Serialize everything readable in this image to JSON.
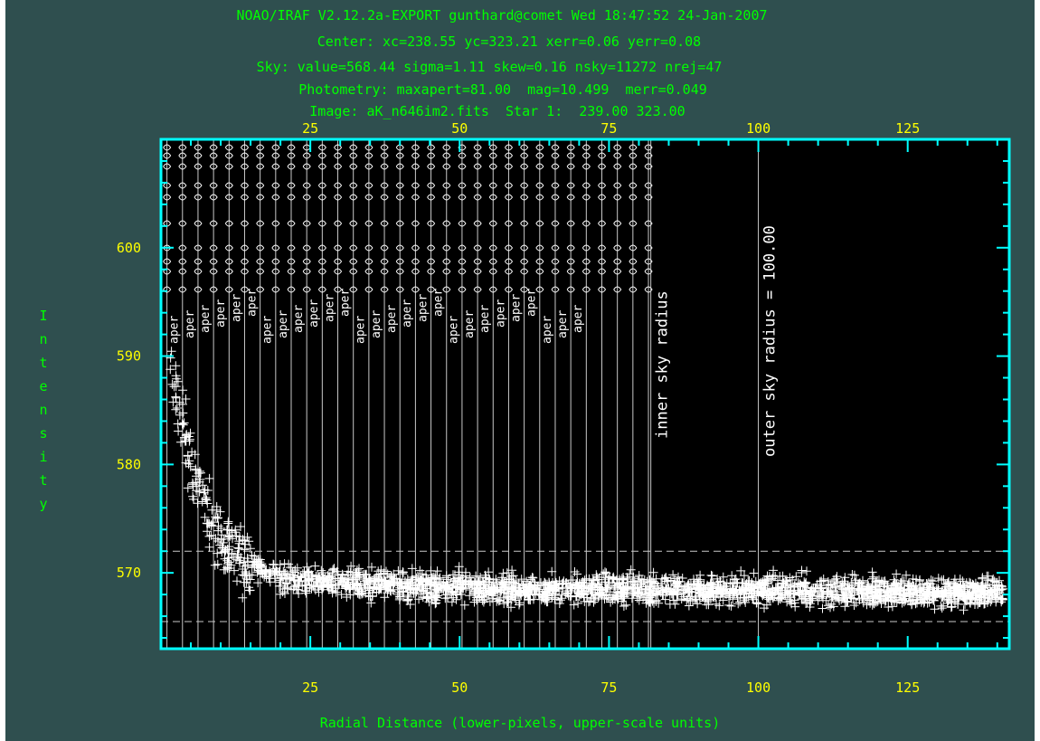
{
  "header": {
    "line1": "NOAO/IRAF V2.12.2a-EXPORT gunthard@comet Wed 18:47:52 24-Jan-2007",
    "line2": "Center: xc=238.55 yc=323.21 xerr=0.06 yerr=0.08",
    "line3": "Sky: value=568.44 sigma=1.11 skew=0.16 nsky=11272 nrej=47",
    "line4": "Photometry: maxapert=81.00  mag=10.499  merr=0.049",
    "line5": "Image: aK_n646im2.fits  Star 1:  239.00 323.00"
  },
  "colors": {
    "background": "#2f4f4f",
    "plot_area": "#000000",
    "frame": "#00ffff",
    "header_text": "#00ff00",
    "tick_labels": "#ffff00",
    "points": "#ffffff",
    "guides": "#c8c8c8"
  },
  "chart_data": {
    "type": "scatter",
    "title": "",
    "xlabel": "Radial Distance (lower-pixels, upper-scale units)",
    "ylabel": "Intensity",
    "xlim": [
      0,
      142
    ],
    "ylim": [
      563,
      610
    ],
    "x_ticks": [
      25,
      50,
      75,
      100,
      125
    ],
    "x_top_ticks": [
      25,
      50,
      75,
      100,
      125
    ],
    "y_ticks": [
      570,
      580,
      590,
      600
    ],
    "sky_level": 568.44,
    "sky_band": [
      565.5,
      572
    ],
    "aperture_annotations": [
      "aper",
      "aper",
      "aper",
      "aper",
      "aper",
      "aper",
      "aper",
      "aper",
      "aper",
      "aper",
      "aper",
      "aper",
      "aper",
      "aper",
      "aper",
      "aper",
      "aper",
      "aper",
      "aper",
      "aper",
      "aper",
      "aper",
      "aper",
      "aper",
      "aper",
      "aper",
      "aper"
    ],
    "vertical_markers": [
      {
        "x": 82,
        "label": "inner sky radius"
      },
      {
        "x": 100,
        "label": "outer sky radius = 100.00"
      }
    ],
    "profile": {
      "peak_region": [
        [
          2,
          589
        ],
        [
          3,
          586
        ],
        [
          4,
          583
        ],
        [
          5,
          580
        ],
        [
          6,
          578
        ],
        [
          8,
          575
        ],
        [
          10,
          573
        ],
        [
          14,
          571
        ],
        [
          20,
          569.5
        ],
        [
          30,
          569
        ],
        [
          60,
          568.5
        ],
        [
          100,
          568.4
        ],
        [
          140,
          568.2
        ]
      ],
      "scatter_sigma": 1.1,
      "point_count": 11272
    }
  }
}
